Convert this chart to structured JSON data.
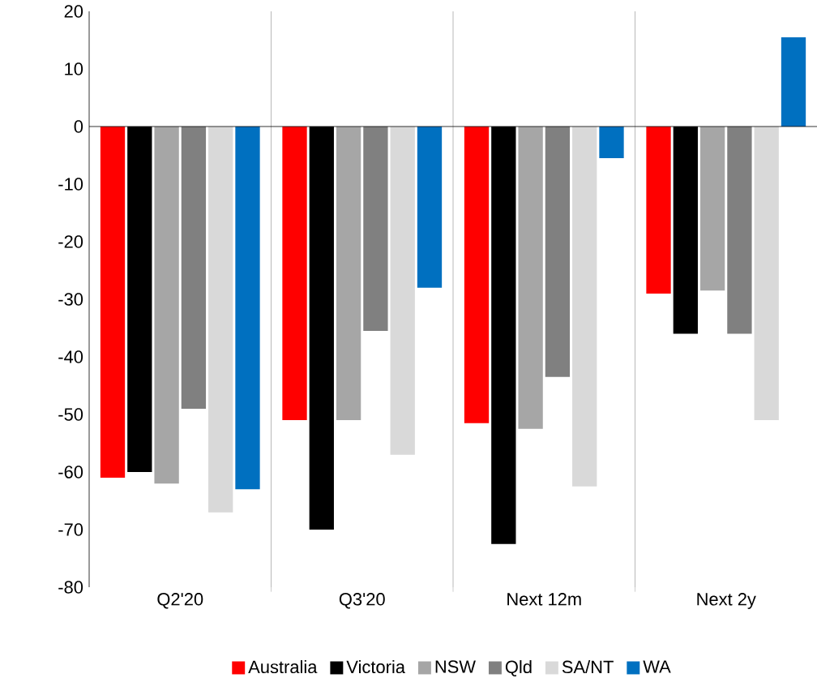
{
  "chart_data": {
    "type": "bar",
    "categories": [
      "Q2'20",
      "Q3'20",
      "Next 12m",
      "Next 2y"
    ],
    "series": [
      {
        "name": "Australia",
        "color": "#ff0000",
        "values": [
          -61,
          -51,
          -51.5,
          -29
        ]
      },
      {
        "name": "Victoria",
        "color": "#000000",
        "values": [
          -60,
          -70,
          -72.5,
          -36
        ]
      },
      {
        "name": "NSW",
        "color": "#a6a6a6",
        "values": [
          -62,
          -51,
          -52.5,
          -28.5
        ]
      },
      {
        "name": "Qld",
        "color": "#808080",
        "values": [
          -49,
          -35.5,
          -43.5,
          -36
        ]
      },
      {
        "name": "SA/NT",
        "color": "#d9d9d9",
        "values": [
          -67,
          -57,
          -62.5,
          -51
        ]
      },
      {
        "name": "WA",
        "color": "#0070c0",
        "values": [
          -63,
          -28,
          -5.5,
          15.5
        ]
      }
    ],
    "ylim": [
      -80,
      20
    ],
    "yticks": [
      -80,
      -70,
      -60,
      -50,
      -40,
      -30,
      -20,
      -10,
      0,
      10,
      20
    ],
    "grid": "x",
    "legend": "bottom"
  }
}
